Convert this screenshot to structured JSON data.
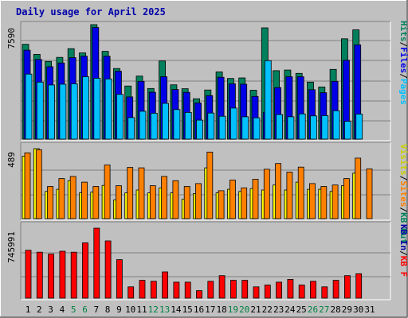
{
  "title": "Daily usage for April 2025",
  "colors": {
    "background": "#c0c0c0",
    "frame": "#e8e8e8",
    "hits": "#00805c",
    "files": "#0000e6",
    "pages": "#00c0ff",
    "visits": "#ffff00",
    "sites": "#ff8000",
    "kbin": "#0000a0",
    "kbout": "#00805c",
    "kbf": "#ff0000",
    "weekday_tick": "#000000",
    "weekend_tick": "#008040"
  },
  "chart_data": [
    {
      "type": "bar",
      "panel": "hits-files-pages",
      "max_label": "7590",
      "ylim": [
        0,
        7590
      ],
      "categories": [
        "1",
        "2",
        "3",
        "4",
        "5",
        "6",
        "7",
        "8",
        "9",
        "10",
        "11",
        "12",
        "13",
        "14",
        "15",
        "16",
        "17",
        "18",
        "19",
        "20",
        "21",
        "22",
        "23",
        "24",
        "25",
        "26",
        "27",
        "28",
        "29",
        "30",
        "31"
      ],
      "series": [
        {
          "name": "Hits",
          "values": [
            6290,
            5620,
            5150,
            5420,
            6000,
            5720,
            7590,
            5820,
            4680,
            3520,
            4180,
            3360,
            5180,
            3600,
            3340,
            2680,
            3260,
            4460,
            4020,
            4060,
            3240,
            7380,
            4540,
            4580,
            4360,
            3780,
            3460,
            4620,
            6650,
            7250,
            0
          ]
        },
        {
          "name": "Files",
          "values": [
            5900,
            5280,
            4800,
            5050,
            5400,
            5500,
            7400,
            5500,
            4500,
            2800,
            3830,
            3110,
            4140,
            3290,
            3100,
            2400,
            2890,
            4100,
            3670,
            3640,
            2830,
            1780,
            3420,
            4140,
            4140,
            3280,
            3080,
            3830,
            5230,
            6250,
            0
          ]
        },
        {
          "name": "Pages",
          "values": [
            4310,
            3780,
            3590,
            3640,
            3670,
            4140,
            4040,
            3990,
            2970,
            1430,
            1850,
            1720,
            2370,
            1960,
            1770,
            1260,
            1730,
            1520,
            2060,
            1480,
            1410,
            5200,
            1630,
            1480,
            1670,
            1540,
            1560,
            1880,
            1180,
            1660,
            0
          ]
        }
      ]
    },
    {
      "type": "bar",
      "panel": "visits-sites",
      "max_label": "489",
      "ylim": [
        0,
        489
      ],
      "categories": [
        "1",
        "2",
        "3",
        "4",
        "5",
        "6",
        "7",
        "8",
        "9",
        "10",
        "11",
        "12",
        "13",
        "14",
        "15",
        "16",
        "17",
        "18",
        "19",
        "20",
        "21",
        "22",
        "23",
        "24",
        "25",
        "26",
        "27",
        "28",
        "29",
        "30",
        "31"
      ],
      "series": [
        {
          "name": "Visits",
          "values": [
            437,
            489,
            190,
            205,
            265,
            180,
            185,
            232,
            130,
            180,
            200,
            180,
            215,
            180,
            135,
            175,
            355,
            180,
            205,
            190,
            210,
            200,
            235,
            200,
            255,
            205,
            205,
            190,
            230,
            318,
            0
          ]
        },
        {
          "name": "Sites",
          "values": [
            460,
            482,
            225,
            280,
            295,
            255,
            225,
            375,
            230,
            358,
            355,
            230,
            295,
            265,
            225,
            245,
            465,
            195,
            270,
            215,
            275,
            345,
            385,
            325,
            360,
            245,
            225,
            235,
            280,
            423,
            348
          ]
        }
      ]
    },
    {
      "type": "bar",
      "panel": "kbf-kbin-kbout",
      "max_label": "745991",
      "ylim": [
        0,
        745991
      ],
      "categories": [
        "1",
        "2",
        "3",
        "4",
        "5",
        "6",
        "7",
        "8",
        "9",
        "10",
        "11",
        "12",
        "13",
        "14",
        "15",
        "16",
        "17",
        "18",
        "19",
        "20",
        "21",
        "22",
        "23",
        "24",
        "25",
        "26",
        "27",
        "28",
        "29",
        "30",
        "31"
      ],
      "series": [
        {
          "name": "KB F",
          "values": [
            510000,
            490000,
            470000,
            500000,
            490000,
            590000,
            745991,
            610000,
            410000,
            120000,
            190000,
            180000,
            280000,
            170000,
            170000,
            80000,
            180000,
            240000,
            190000,
            190000,
            120000,
            140000,
            170000,
            200000,
            140000,
            180000,
            120000,
            190000,
            240000,
            260000,
            0
          ]
        }
      ]
    }
  ],
  "x_ticks": [
    {
      "label": "1",
      "weekend": false
    },
    {
      "label": "2",
      "weekend": false
    },
    {
      "label": "3",
      "weekend": false
    },
    {
      "label": "4",
      "weekend": false
    },
    {
      "label": "5",
      "weekend": true
    },
    {
      "label": "6",
      "weekend": true
    },
    {
      "label": "7",
      "weekend": false
    },
    {
      "label": "8",
      "weekend": false
    },
    {
      "label": "9",
      "weekend": false
    },
    {
      "label": "10",
      "weekend": false
    },
    {
      "label": "11",
      "weekend": false
    },
    {
      "label": "12",
      "weekend": true
    },
    {
      "label": "13",
      "weekend": true
    },
    {
      "label": "14",
      "weekend": false
    },
    {
      "label": "15",
      "weekend": false
    },
    {
      "label": "16",
      "weekend": false
    },
    {
      "label": "17",
      "weekend": false
    },
    {
      "label": "18",
      "weekend": false
    },
    {
      "label": "19",
      "weekend": true
    },
    {
      "label": "20",
      "weekend": true
    },
    {
      "label": "21",
      "weekend": false
    },
    {
      "label": "22",
      "weekend": false
    },
    {
      "label": "23",
      "weekend": false
    },
    {
      "label": "24",
      "weekend": false
    },
    {
      "label": "25",
      "weekend": false
    },
    {
      "label": "26",
      "weekend": true
    },
    {
      "label": "27",
      "weekend": true
    },
    {
      "label": "28",
      "weekend": false
    },
    {
      "label": "29",
      "weekend": false
    },
    {
      "label": "30",
      "weekend": false
    },
    {
      "label": "31",
      "weekend": false
    }
  ],
  "legends": {
    "top": [
      {
        "text": "Hits",
        "color": "#00805c"
      },
      {
        "text": "/",
        "color": "#000000"
      },
      {
        "text": "Files",
        "color": "#0000e6"
      },
      {
        "text": "/",
        "color": "#000000"
      },
      {
        "text": "Pages",
        "color": "#00c0ff"
      }
    ],
    "middle": [
      {
        "text": "Visits",
        "color": "#cccc00"
      },
      {
        "text": "/",
        "color": "#000000"
      },
      {
        "text": "Sites",
        "color": "#ff8000"
      },
      {
        "text": "/",
        "color": "#000000"
      },
      {
        "text": "KB Out",
        "color": "#00805c"
      }
    ],
    "bottom": [
      {
        "text": "KB In",
        "color": "#0000a0"
      },
      {
        "text": "/",
        "color": "#000000"
      },
      {
        "text": "KB F",
        "color": "#ff0000"
      }
    ]
  }
}
